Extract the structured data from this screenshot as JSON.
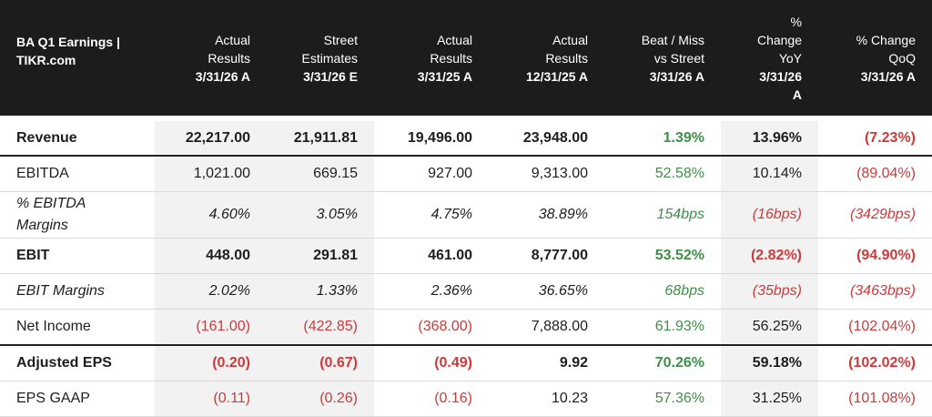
{
  "header": {
    "title_line1": "BA Q1 Earnings |",
    "title_line2": "TIKR.com",
    "columns": [
      {
        "lines": [
          "Actual",
          "Results"
        ],
        "date": "3/31/26 A"
      },
      {
        "lines": [
          "Street",
          "Estimates"
        ],
        "date": "3/31/26 E"
      },
      {
        "lines": [
          "Actual",
          "Results"
        ],
        "date": "3/31/25 A"
      },
      {
        "lines": [
          "Actual",
          "Results"
        ],
        "date": "12/31/25 A"
      },
      {
        "lines": [
          "Beat / Miss",
          "vs Street"
        ],
        "date": "3/31/26 A"
      },
      {
        "lines": [
          "%",
          "Change",
          "YoY"
        ],
        "date": "3/31/26",
        "date2": "A"
      },
      {
        "lines": [
          "% Change",
          "QoQ"
        ],
        "date": "3/31/26 A"
      }
    ]
  },
  "rows": [
    {
      "label": "Revenue",
      "cells": [
        "22,217.00",
        "21,911.81",
        "19,496.00",
        "23,948.00",
        "1.39%",
        "13.96%",
        "(7.23%)"
      ]
    },
    {
      "label": "EBITDA",
      "cells": [
        "1,021.00",
        "669.15",
        "927.00",
        "9,313.00",
        "52.58%",
        "10.14%",
        "(89.04%)"
      ]
    },
    {
      "label": "% EBITDA Margins",
      "cells": [
        "4.60%",
        "3.05%",
        "4.75%",
        "38.89%",
        "154bps",
        "(16bps)",
        "(3429bps)"
      ]
    },
    {
      "label": "EBIT",
      "cells": [
        "448.00",
        "291.81",
        "461.00",
        "8,777.00",
        "53.52%",
        "(2.82%)",
        "(94.90%)"
      ]
    },
    {
      "label": "EBIT Margins",
      "cells": [
        "2.02%",
        "1.33%",
        "2.36%",
        "36.65%",
        "68bps",
        "(35bps)",
        "(3463bps)"
      ]
    },
    {
      "label": "Net Income",
      "cells": [
        "(161.00)",
        "(422.85)",
        "(368.00)",
        "7,888.00",
        "61.93%",
        "56.25%",
        "(102.04%)"
      ]
    },
    {
      "label": "Adjusted EPS",
      "cells": [
        "(0.20)",
        "(0.67)",
        "(0.49)",
        "9.92",
        "70.26%",
        "59.18%",
        "(102.02%)"
      ]
    },
    {
      "label": "EPS GAAP",
      "cells": [
        "(0.11)",
        "(0.26)",
        "(0.16)",
        "10.23",
        "57.36%",
        "31.25%",
        "(101.08%)"
      ]
    }
  ],
  "colors": {
    "positive": "#3f8f49",
    "negative": "#d0393a",
    "header_bg": "#1c1c1c",
    "shade": "#f2f2f2"
  }
}
